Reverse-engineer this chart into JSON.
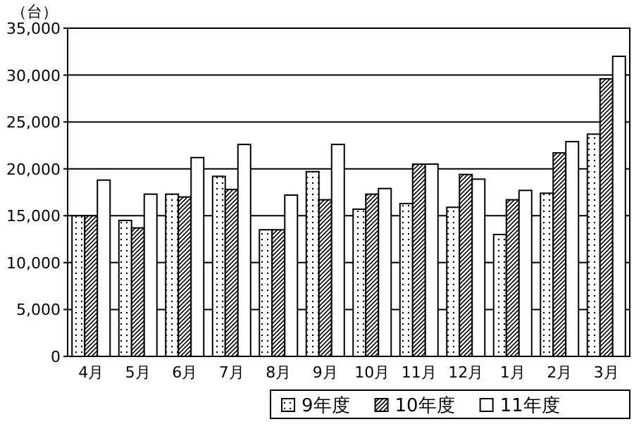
{
  "chart_data": {
    "type": "bar",
    "ylabel": "（台）",
    "categories": [
      "4月",
      "5月",
      "6月",
      "7月",
      "8月",
      "9月",
      "10月",
      "11月",
      "12月",
      "1月",
      "2月",
      "3月"
    ],
    "series": [
      {
        "name": "9年度",
        "color": "#ffffff",
        "values": [
          15000,
          14500,
          17300,
          19200,
          13500,
          19700,
          15700,
          16300,
          15900,
          13000,
          17400,
          23700
        ]
      },
      {
        "name": "10年度",
        "color": "#ffffff",
        "values": [
          15000,
          13700,
          17000,
          17800,
          13500,
          16700,
          17300,
          20500,
          19400,
          16700,
          21700,
          29600
        ]
      },
      {
        "name": "11年度",
        "color": "#ffffff",
        "values": [
          18800,
          17300,
          21200,
          22600,
          17200,
          22600,
          17900,
          20500,
          18900,
          17700,
          22900,
          32000
        ]
      }
    ],
    "ylim": [
      0,
      35000
    ],
    "yticks": [
      {
        "value": 0,
        "label": "0"
      },
      {
        "value": 5000,
        "label": "5,000"
      },
      {
        "value": 10000,
        "label": "10,000"
      },
      {
        "value": 15000,
        "label": "15,000"
      },
      {
        "value": 20000,
        "label": "20,000"
      },
      {
        "value": 25000,
        "label": "25,000"
      },
      {
        "value": 30000,
        "label": "30,000"
      },
      {
        "value": 35000,
        "label": "35,000"
      }
    ],
    "grid": "y",
    "legend": "bottom right"
  }
}
